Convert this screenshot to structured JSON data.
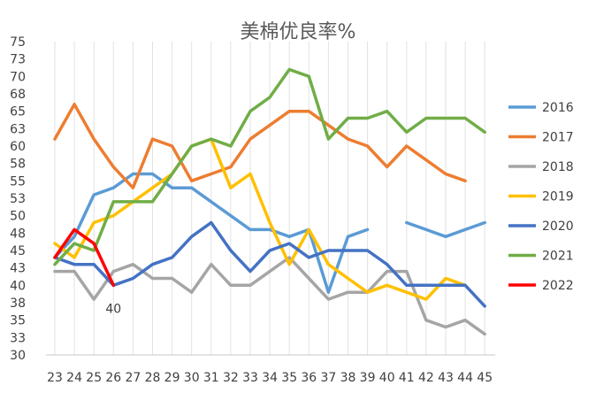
{
  "chart_data": {
    "type": "line",
    "title": "美棉优良率%",
    "x": [
      23,
      24,
      25,
      26,
      27,
      28,
      29,
      30,
      31,
      32,
      33,
      34,
      35,
      36,
      37,
      38,
      39,
      40,
      41,
      42,
      43,
      44,
      45
    ],
    "y_ticks": [
      "30",
      "33",
      "35",
      "38",
      "40",
      "43",
      "45",
      "48",
      "50",
      "53",
      "55",
      "58",
      "60",
      "63",
      "65",
      "68",
      "70",
      "73",
      "75"
    ],
    "ylim": [
      30,
      75
    ],
    "grid": "vertical",
    "legend_position": "right",
    "series": [
      {
        "name": "2016",
        "color": "#5B9BD5",
        "values": [
          44,
          47,
          53,
          54,
          56,
          56,
          54,
          54,
          52,
          50,
          48,
          48,
          47,
          48,
          39,
          47,
          48,
          null,
          49,
          48,
          47,
          48,
          49
        ]
      },
      {
        "name": "2017",
        "color": "#ED7D31",
        "values": [
          61,
          66,
          61,
          57,
          54,
          61,
          60,
          55,
          56,
          57,
          61,
          63,
          65,
          65,
          63,
          61,
          60,
          57,
          60,
          58,
          56,
          55,
          null
        ]
      },
      {
        "name": "2018",
        "color": "#A5A5A5",
        "values": [
          42,
          42,
          38,
          42,
          43,
          41,
          41,
          39,
          43,
          40,
          40,
          42,
          44,
          41,
          38,
          39,
          39,
          42,
          42,
          35,
          34,
          35,
          33
        ]
      },
      {
        "name": "2019",
        "color": "#FFC000",
        "values": [
          46,
          44,
          49,
          50,
          52,
          54,
          56,
          60,
          61,
          54,
          56,
          49,
          43,
          48,
          43,
          41,
          39,
          40,
          39,
          38,
          41,
          40,
          null
        ]
      },
      {
        "name": "2020",
        "color": "#4472C4",
        "values": [
          44,
          43,
          43,
          40,
          41,
          43,
          44,
          47,
          49,
          45,
          42,
          45,
          46,
          44,
          45,
          45,
          45,
          43,
          40,
          40,
          40,
          40,
          37
        ]
      },
      {
        "name": "2021",
        "color": "#70AD47",
        "values": [
          43,
          46,
          45,
          52,
          52,
          52,
          56,
          60,
          61,
          60,
          65,
          67,
          71,
          70,
          61,
          64,
          64,
          65,
          62,
          64,
          64,
          64,
          62
        ]
      },
      {
        "name": "2022",
        "color": "#FF0000",
        "values": [
          44,
          48,
          46,
          40,
          null,
          null,
          null,
          null,
          null,
          null,
          null,
          null,
          null,
          null,
          null,
          null,
          null,
          null,
          null,
          null,
          null,
          null,
          null
        ]
      }
    ],
    "annotations": [
      {
        "text": "40",
        "series": "2022",
        "x": 26
      }
    ]
  }
}
